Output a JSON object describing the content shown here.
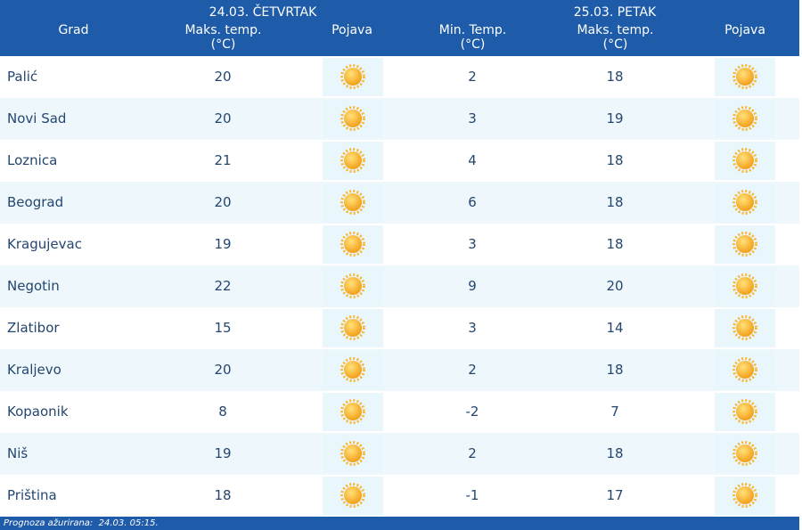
{
  "header": {
    "day1": "24.03. ČETVRTAK",
    "day2": "25.03. PETAK",
    "columns": [
      "Grad",
      "Maks. temp. (°C)",
      "Pojava",
      "Min. Temp. (°C)",
      "Maks. temp. (°C)",
      "Pojava"
    ]
  },
  "table": {
    "rows": [
      [
        "Palić",
        20,
        2,
        18
      ],
      [
        "Novi Sad",
        20,
        3,
        19
      ],
      [
        "Loznica",
        21,
        4,
        18
      ],
      [
        "Beograd",
        20,
        6,
        18
      ],
      [
        "Kragujevac",
        19,
        3,
        18
      ],
      [
        "Negotin",
        22,
        9,
        20
      ],
      [
        "Zlatibor",
        15,
        3,
        14
      ],
      [
        "Kraljevo",
        20,
        2,
        18
      ],
      [
        "Kopaonik",
        8,
        -2,
        7
      ],
      [
        "Niš",
        19,
        2,
        18
      ],
      [
        "Priština",
        18,
        -1,
        17
      ]
    ]
  },
  "footer": "Prognoza ažurirana:  24.03. 05:15."
}
